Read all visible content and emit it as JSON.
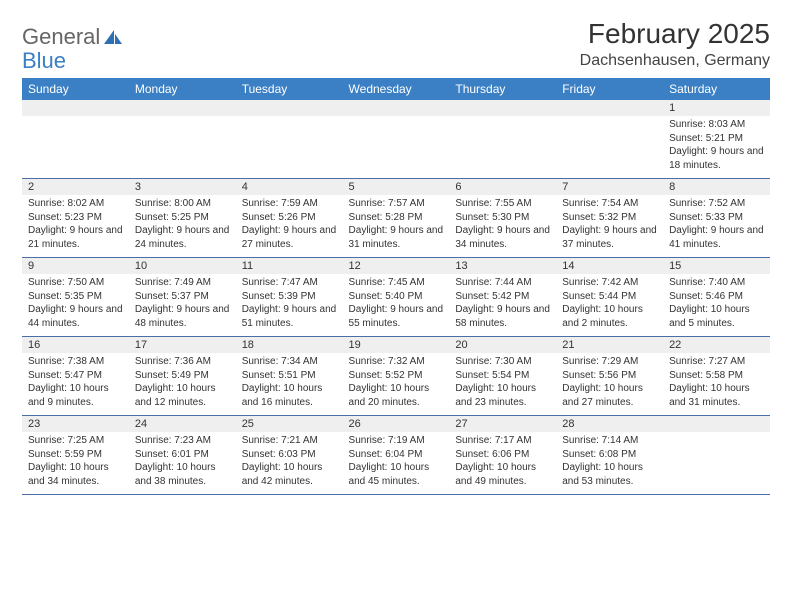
{
  "brand": {
    "part1": "General",
    "part2": "Blue",
    "logo_color": "#2f6fb3"
  },
  "title": "February 2025",
  "location": "Dachsenhausen, Germany",
  "header_bg": "#3b7fc4",
  "header_fg": "#ffffff",
  "daynum_bg": "#efefef",
  "rule_color": "#4a6fa5",
  "text_color": "#333333",
  "background_color": "#ffffff",
  "fonts": {
    "title_pt": 28,
    "location_pt": 16,
    "header_pt": 12,
    "daynum_pt": 11,
    "body_pt": 10
  },
  "columns": [
    "Sunday",
    "Monday",
    "Tuesday",
    "Wednesday",
    "Thursday",
    "Friday",
    "Saturday"
  ],
  "weeks": [
    [
      {
        "day": "",
        "sunrise": "",
        "sunset": "",
        "daylight": ""
      },
      {
        "day": "",
        "sunrise": "",
        "sunset": "",
        "daylight": ""
      },
      {
        "day": "",
        "sunrise": "",
        "sunset": "",
        "daylight": ""
      },
      {
        "day": "",
        "sunrise": "",
        "sunset": "",
        "daylight": ""
      },
      {
        "day": "",
        "sunrise": "",
        "sunset": "",
        "daylight": ""
      },
      {
        "day": "",
        "sunrise": "",
        "sunset": "",
        "daylight": ""
      },
      {
        "day": "1",
        "sunrise": "Sunrise: 8:03 AM",
        "sunset": "Sunset: 5:21 PM",
        "daylight": "Daylight: 9 hours and 18 minutes."
      }
    ],
    [
      {
        "day": "2",
        "sunrise": "Sunrise: 8:02 AM",
        "sunset": "Sunset: 5:23 PM",
        "daylight": "Daylight: 9 hours and 21 minutes."
      },
      {
        "day": "3",
        "sunrise": "Sunrise: 8:00 AM",
        "sunset": "Sunset: 5:25 PM",
        "daylight": "Daylight: 9 hours and 24 minutes."
      },
      {
        "day": "4",
        "sunrise": "Sunrise: 7:59 AM",
        "sunset": "Sunset: 5:26 PM",
        "daylight": "Daylight: 9 hours and 27 minutes."
      },
      {
        "day": "5",
        "sunrise": "Sunrise: 7:57 AM",
        "sunset": "Sunset: 5:28 PM",
        "daylight": "Daylight: 9 hours and 31 minutes."
      },
      {
        "day": "6",
        "sunrise": "Sunrise: 7:55 AM",
        "sunset": "Sunset: 5:30 PM",
        "daylight": "Daylight: 9 hours and 34 minutes."
      },
      {
        "day": "7",
        "sunrise": "Sunrise: 7:54 AM",
        "sunset": "Sunset: 5:32 PM",
        "daylight": "Daylight: 9 hours and 37 minutes."
      },
      {
        "day": "8",
        "sunrise": "Sunrise: 7:52 AM",
        "sunset": "Sunset: 5:33 PM",
        "daylight": "Daylight: 9 hours and 41 minutes."
      }
    ],
    [
      {
        "day": "9",
        "sunrise": "Sunrise: 7:50 AM",
        "sunset": "Sunset: 5:35 PM",
        "daylight": "Daylight: 9 hours and 44 minutes."
      },
      {
        "day": "10",
        "sunrise": "Sunrise: 7:49 AM",
        "sunset": "Sunset: 5:37 PM",
        "daylight": "Daylight: 9 hours and 48 minutes."
      },
      {
        "day": "11",
        "sunrise": "Sunrise: 7:47 AM",
        "sunset": "Sunset: 5:39 PM",
        "daylight": "Daylight: 9 hours and 51 minutes."
      },
      {
        "day": "12",
        "sunrise": "Sunrise: 7:45 AM",
        "sunset": "Sunset: 5:40 PM",
        "daylight": "Daylight: 9 hours and 55 minutes."
      },
      {
        "day": "13",
        "sunrise": "Sunrise: 7:44 AM",
        "sunset": "Sunset: 5:42 PM",
        "daylight": "Daylight: 9 hours and 58 minutes."
      },
      {
        "day": "14",
        "sunrise": "Sunrise: 7:42 AM",
        "sunset": "Sunset: 5:44 PM",
        "daylight": "Daylight: 10 hours and 2 minutes."
      },
      {
        "day": "15",
        "sunrise": "Sunrise: 7:40 AM",
        "sunset": "Sunset: 5:46 PM",
        "daylight": "Daylight: 10 hours and 5 minutes."
      }
    ],
    [
      {
        "day": "16",
        "sunrise": "Sunrise: 7:38 AM",
        "sunset": "Sunset: 5:47 PM",
        "daylight": "Daylight: 10 hours and 9 minutes."
      },
      {
        "day": "17",
        "sunrise": "Sunrise: 7:36 AM",
        "sunset": "Sunset: 5:49 PM",
        "daylight": "Daylight: 10 hours and 12 minutes."
      },
      {
        "day": "18",
        "sunrise": "Sunrise: 7:34 AM",
        "sunset": "Sunset: 5:51 PM",
        "daylight": "Daylight: 10 hours and 16 minutes."
      },
      {
        "day": "19",
        "sunrise": "Sunrise: 7:32 AM",
        "sunset": "Sunset: 5:52 PM",
        "daylight": "Daylight: 10 hours and 20 minutes."
      },
      {
        "day": "20",
        "sunrise": "Sunrise: 7:30 AM",
        "sunset": "Sunset: 5:54 PM",
        "daylight": "Daylight: 10 hours and 23 minutes."
      },
      {
        "day": "21",
        "sunrise": "Sunrise: 7:29 AM",
        "sunset": "Sunset: 5:56 PM",
        "daylight": "Daylight: 10 hours and 27 minutes."
      },
      {
        "day": "22",
        "sunrise": "Sunrise: 7:27 AM",
        "sunset": "Sunset: 5:58 PM",
        "daylight": "Daylight: 10 hours and 31 minutes."
      }
    ],
    [
      {
        "day": "23",
        "sunrise": "Sunrise: 7:25 AM",
        "sunset": "Sunset: 5:59 PM",
        "daylight": "Daylight: 10 hours and 34 minutes."
      },
      {
        "day": "24",
        "sunrise": "Sunrise: 7:23 AM",
        "sunset": "Sunset: 6:01 PM",
        "daylight": "Daylight: 10 hours and 38 minutes."
      },
      {
        "day": "25",
        "sunrise": "Sunrise: 7:21 AM",
        "sunset": "Sunset: 6:03 PM",
        "daylight": "Daylight: 10 hours and 42 minutes."
      },
      {
        "day": "26",
        "sunrise": "Sunrise: 7:19 AM",
        "sunset": "Sunset: 6:04 PM",
        "daylight": "Daylight: 10 hours and 45 minutes."
      },
      {
        "day": "27",
        "sunrise": "Sunrise: 7:17 AM",
        "sunset": "Sunset: 6:06 PM",
        "daylight": "Daylight: 10 hours and 49 minutes."
      },
      {
        "day": "28",
        "sunrise": "Sunrise: 7:14 AM",
        "sunset": "Sunset: 6:08 PM",
        "daylight": "Daylight: 10 hours and 53 minutes."
      },
      {
        "day": "",
        "sunrise": "",
        "sunset": "",
        "daylight": ""
      }
    ]
  ]
}
